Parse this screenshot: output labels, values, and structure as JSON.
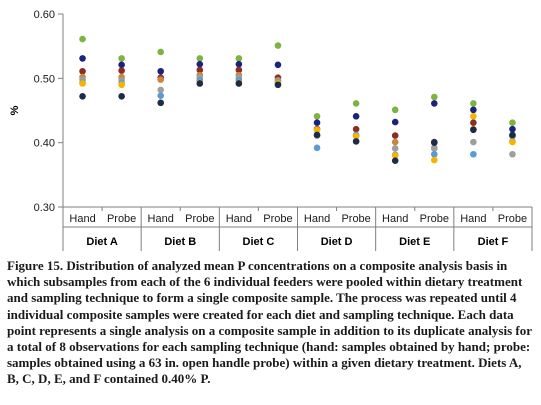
{
  "chart_data": {
    "type": "scatter",
    "ylabel": "%",
    "ylim": [
      0.3,
      0.6
    ],
    "yticks": [
      "0.30",
      "0.40",
      "0.50",
      "0.60"
    ],
    "grid": false,
    "legend": "none",
    "groups": [
      "Diet A",
      "Diet B",
      "Diet C",
      "Diet D",
      "Diet E",
      "Diet F"
    ],
    "categories": [
      "Hand",
      "Probe"
    ],
    "point_colors": [
      "#7cb342",
      "#1a237e",
      "#8b2e23",
      "#c9873b",
      "#9e9e9e",
      "#5b9bd5",
      "#f4b400",
      "#1c2b4a"
    ],
    "series": [
      {
        "group": "Diet A",
        "category": "Hand",
        "values": [
          0.561,
          0.531,
          0.511,
          0.502,
          0.498,
          0.493,
          0.492,
          0.472
        ]
      },
      {
        "group": "Diet A",
        "category": "Probe",
        "values": [
          0.531,
          0.521,
          0.512,
          0.502,
          0.497,
          0.492,
          0.49,
          0.472
        ]
      },
      {
        "group": "Diet B",
        "category": "Hand",
        "values": [
          0.541,
          0.511,
          0.501,
          0.498,
          0.482,
          0.473,
          0.462,
          0.462
        ]
      },
      {
        "group": "Diet B",
        "category": "Probe",
        "values": [
          0.531,
          0.522,
          0.513,
          0.505,
          0.501,
          0.497,
          0.493,
          0.492
        ]
      },
      {
        "group": "Diet C",
        "category": "Hand",
        "values": [
          0.531,
          0.522,
          0.513,
          0.505,
          0.501,
          0.497,
          0.493,
          0.492
        ]
      },
      {
        "group": "Diet C",
        "category": "Probe",
        "values": [
          0.551,
          0.521,
          0.501,
          0.497,
          0.495,
          0.493,
          0.492,
          0.49
        ]
      },
      {
        "group": "Diet D",
        "category": "Hand",
        "values": [
          0.441,
          0.431,
          0.421,
          0.412,
          0.411,
          0.392,
          0.42,
          0.412
        ]
      },
      {
        "group": "Diet D",
        "category": "Probe",
        "values": [
          0.461,
          0.441,
          0.421,
          0.411,
          0.402,
          0.412,
          0.41,
          0.402
        ]
      },
      {
        "group": "Diet E",
        "category": "Hand",
        "values": [
          0.451,
          0.432,
          0.411,
          0.401,
          0.391,
          0.381,
          0.38,
          0.372
        ]
      },
      {
        "group": "Diet E",
        "category": "Probe",
        "values": [
          0.471,
          0.461,
          0.401,
          0.392,
          0.391,
          0.382,
          0.373,
          0.4
        ]
      },
      {
        "group": "Diet F",
        "category": "Hand",
        "values": [
          0.461,
          0.451,
          0.431,
          0.421,
          0.401,
          0.382,
          0.441,
          0.42
        ]
      },
      {
        "group": "Diet F",
        "category": "Probe",
        "values": [
          0.431,
          0.421,
          0.411,
          0.402,
          0.382,
          0.41,
          0.401,
          0.412
        ]
      }
    ]
  },
  "caption": "Figure 15. Distribution of analyzed mean P concentrations on a composite analysis basis in which subsamples from each of the 6 individual feeders were pooled within dietary treatment and sampling technique to form a single composite sample. The process was repeated until 4 individual composite samples were created for each diet and sampling technique. Each data point represents a single analysis on a composite sample in addition to its duplicate analysis for a total of 8 observations for each sampling technique (hand: samples obtained by hand; probe: samples obtained using a 63 in. open handle probe) within a given dietary treatment. Diets A, B, C, D, E, and F contained 0.40% P."
}
